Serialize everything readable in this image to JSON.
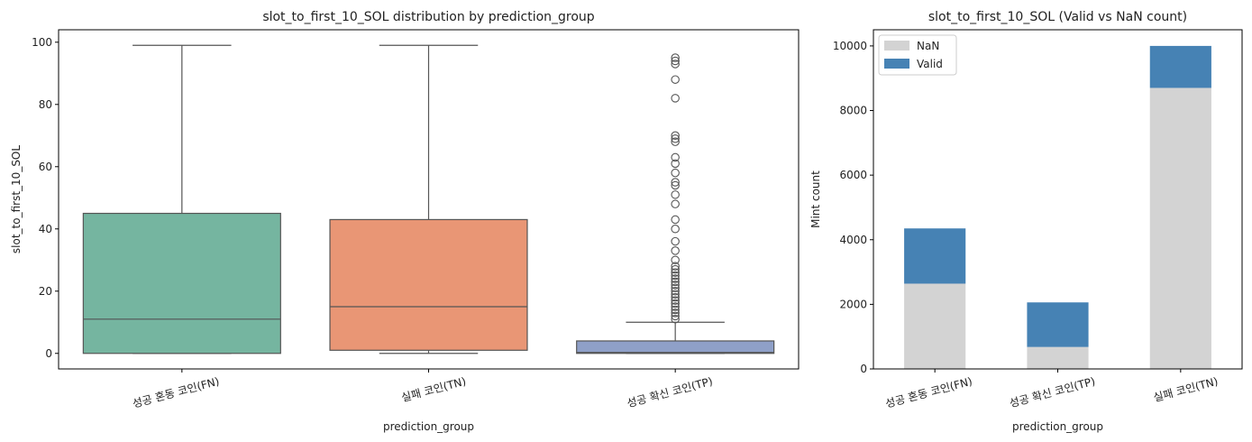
{
  "chart_data": [
    {
      "type": "box",
      "title": "slot_to_first_10_SOL distribution by prediction_group",
      "xlabel": "prediction_group",
      "ylabel": "slot_to_first_10_SOL",
      "ylim": [
        -5,
        104
      ],
      "yticks": [
        0,
        20,
        40,
        60,
        80,
        100
      ],
      "grid": false,
      "categories": [
        "성공 혼동 코인(FN)",
        "실패 코인(TN)",
        "성공 확신 코인(TP)"
      ],
      "boxes": [
        {
          "category": "성공 혼동 코인(FN)",
          "color": "#75b5a0",
          "whisker_low": 0,
          "q1": 0,
          "median": 11,
          "q3": 45,
          "whisker_high": 99,
          "outliers": []
        },
        {
          "category": "실패 코인(TN)",
          "color": "#e99675",
          "whisker_low": 0,
          "q1": 1,
          "median": 15,
          "q3": 43,
          "whisker_high": 99,
          "outliers": []
        },
        {
          "category": "성공 확신 코인(TP)",
          "color": "#8fa0c8",
          "whisker_low": 0,
          "q1": 0,
          "median": 0.3,
          "q3": 4,
          "whisker_high": 10,
          "outliers": [
            11,
            12,
            13,
            14,
            15,
            16,
            17,
            18,
            19,
            20,
            21,
            22,
            23,
            24,
            25,
            26,
            27,
            28,
            30,
            33,
            36,
            40,
            43,
            48,
            51,
            54,
            55,
            58,
            61,
            63,
            68,
            69,
            70,
            82,
            88,
            93,
            94,
            95
          ]
        }
      ]
    },
    {
      "type": "bar",
      "stacked": true,
      "title": "slot_to_first_10_SOL (Valid vs NaN count)",
      "xlabel": "prediction_group",
      "ylabel": "Mint count",
      "ylim": [
        0,
        10500
      ],
      "yticks": [
        0,
        2000,
        4000,
        6000,
        8000,
        10000
      ],
      "legend": "top-left",
      "categories": [
        "성공 혼동 코인(FN)",
        "성공 확신 코인(TP)",
        "실패 코인(TN)"
      ],
      "series": [
        {
          "name": "NaN",
          "color": "#d3d3d3",
          "values": [
            2640,
            680,
            8700
          ]
        },
        {
          "name": "Valid",
          "color": "#4682b4",
          "values": [
            1710,
            1380,
            1300
          ]
        }
      ]
    }
  ]
}
